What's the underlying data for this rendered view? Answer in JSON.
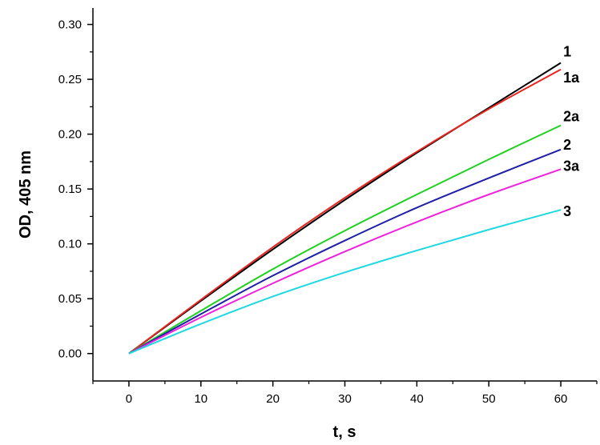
{
  "chart_data": {
    "type": "line",
    "xlabel": "t, s",
    "ylabel": "OD, 405 nm",
    "xlim": [
      -5,
      65
    ],
    "ylim": [
      -0.025,
      0.315
    ],
    "xticks": [
      0,
      10,
      20,
      30,
      40,
      50,
      60
    ],
    "xtick_labels": [
      "0",
      "10",
      "20",
      "30",
      "40",
      "50",
      "60"
    ],
    "yticks": [
      0.0,
      0.05,
      0.1,
      0.15,
      0.2,
      0.25,
      0.3
    ],
    "ytick_labels": [
      "0.00",
      "0.05",
      "0.10",
      "0.15",
      "0.20",
      "0.25",
      "0.30"
    ],
    "grid": false,
    "series": [
      {
        "name": "1",
        "color": "#000000",
        "x": [
          0,
          10,
          20,
          30,
          40,
          50,
          60
        ],
        "y": [
          0,
          0.048,
          0.095,
          0.14,
          0.183,
          0.224,
          0.265
        ]
      },
      {
        "name": "1a",
        "color": "#e8251f",
        "x": [
          0,
          10,
          20,
          30,
          40,
          50,
          60
        ],
        "y": [
          0,
          0.049,
          0.097,
          0.142,
          0.184,
          0.223,
          0.259
        ]
      },
      {
        "name": "2a",
        "color": "#1fd11f",
        "x": [
          0,
          10,
          20,
          30,
          40,
          50,
          60
        ],
        "y": [
          0,
          0.039,
          0.077,
          0.112,
          0.145,
          0.177,
          0.208
        ]
      },
      {
        "name": "2",
        "color": "#1f1fa8",
        "x": [
          0,
          10,
          20,
          30,
          40,
          50,
          60
        ],
        "y": [
          0,
          0.036,
          0.071,
          0.103,
          0.133,
          0.16,
          0.186
        ]
      },
      {
        "name": "3a",
        "color": "#ee22dd",
        "x": [
          0,
          10,
          20,
          30,
          40,
          50,
          60
        ],
        "y": [
          0,
          0.033,
          0.064,
          0.093,
          0.12,
          0.145,
          0.168
        ]
      },
      {
        "name": "3",
        "color": "#1fd8e0",
        "x": [
          0,
          10,
          20,
          30,
          40,
          50,
          60
        ],
        "y": [
          0,
          0.027,
          0.052,
          0.074,
          0.094,
          0.113,
          0.131
        ]
      }
    ]
  }
}
